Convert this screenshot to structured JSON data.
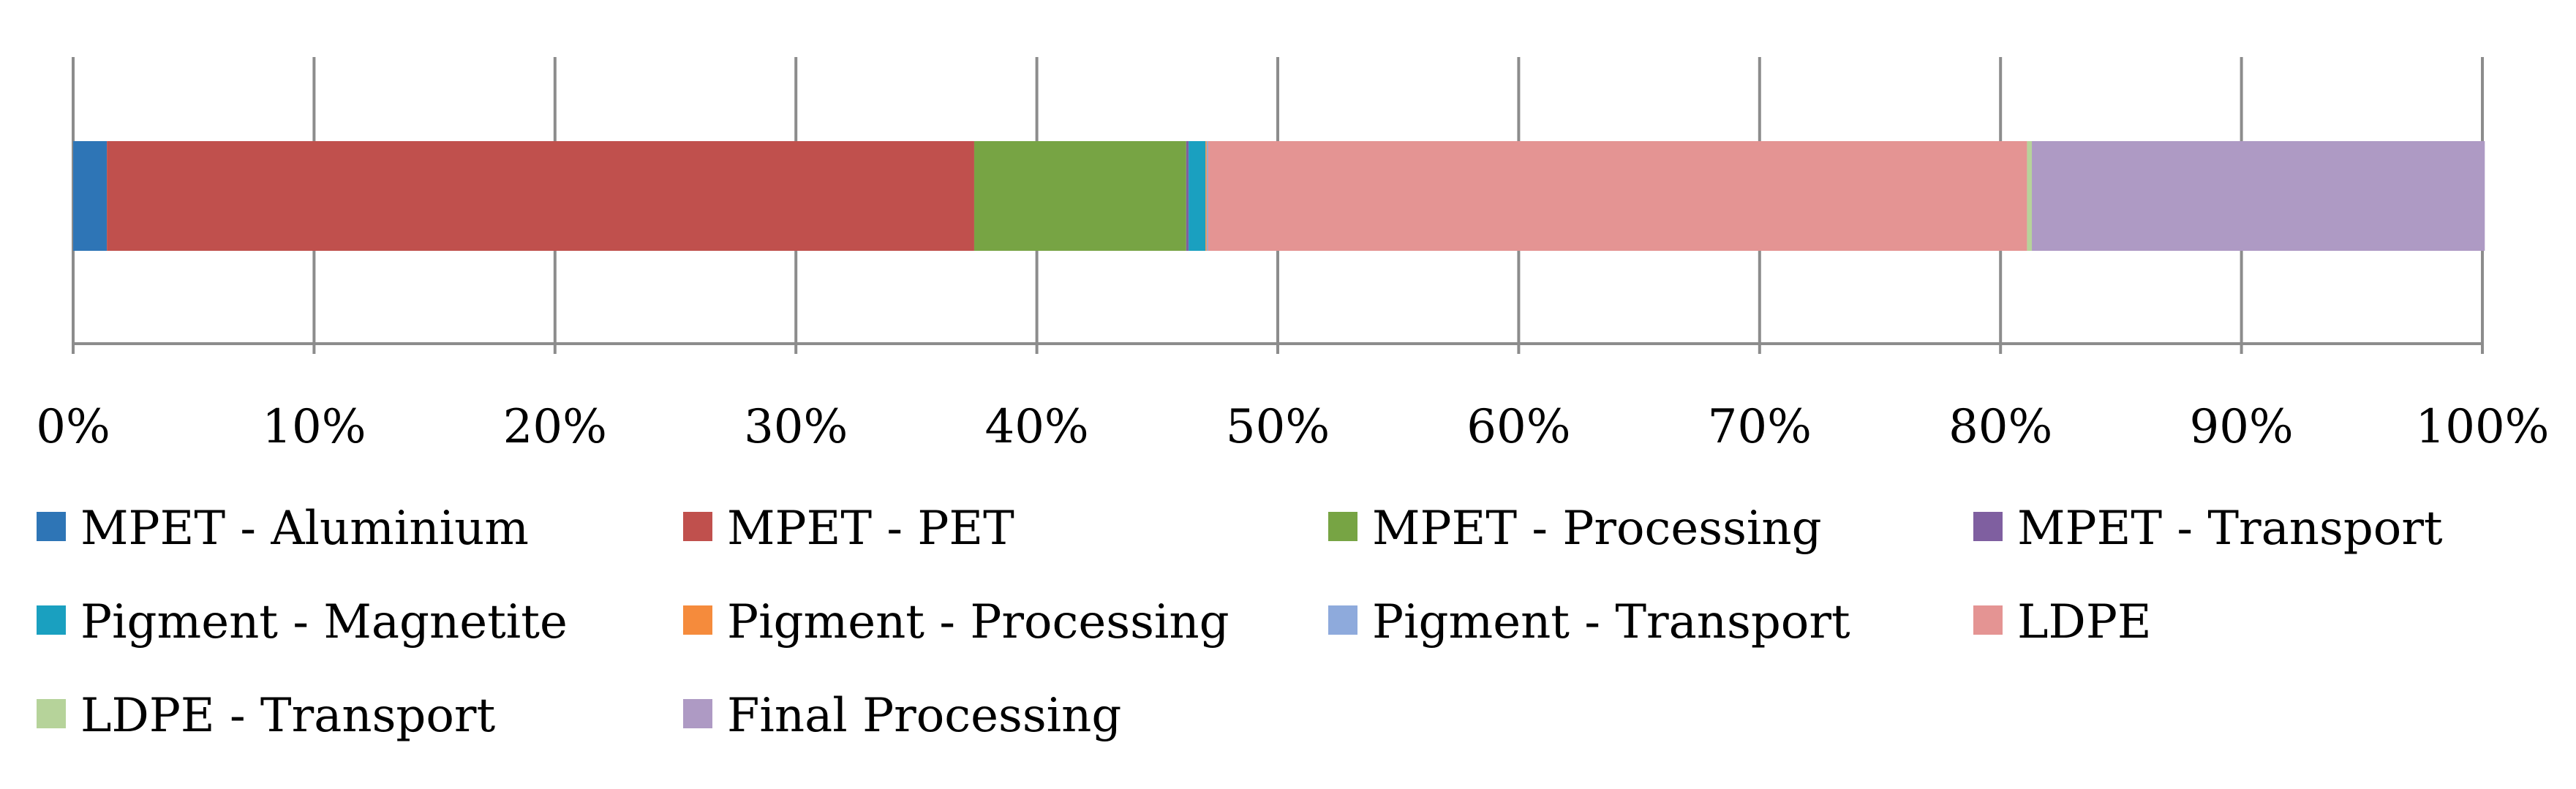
{
  "chart_data": {
    "type": "bar",
    "orientation": "horizontal",
    "stacked": true,
    "percent_axis": true,
    "xlim": [
      0,
      100
    ],
    "grid": true,
    "legend_position": "bottom",
    "x_ticks": [
      "0%",
      "10%",
      "20%",
      "30%",
      "40%",
      "50%",
      "60%",
      "70%",
      "80%",
      "90%",
      "100%"
    ],
    "series": [
      {
        "name": "MPET - Aluminium",
        "values": [
          1.4
        ],
        "color": "#2e75b6"
      },
      {
        "name": "MPET - PET",
        "values": [
          36.0
        ],
        "color": "#c0504d"
      },
      {
        "name": "MPET - Processing",
        "values": [
          8.8
        ],
        "color": "#77a444"
      },
      {
        "name": "MPET - Transport",
        "values": [
          0.1
        ],
        "color": "#7f5fa0"
      },
      {
        "name": "Pigment - Magnetite",
        "values": [
          0.7
        ],
        "color": "#1aa0c0"
      },
      {
        "name": "Pigment - Processing",
        "values": [
          0.05
        ],
        "color": "#f58b3c"
      },
      {
        "name": "Pigment - Transport",
        "values": [
          0.05
        ],
        "color": "#8eaadc"
      },
      {
        "name": "LDPE",
        "values": [
          34.0
        ],
        "color": "#e49493"
      },
      {
        "name": "LDPE - Transport",
        "values": [
          0.2
        ],
        "color": "#b6d39a"
      },
      {
        "name": "Final Processing",
        "values": [
          18.8
        ],
        "color": "#ae9ac4"
      }
    ]
  }
}
